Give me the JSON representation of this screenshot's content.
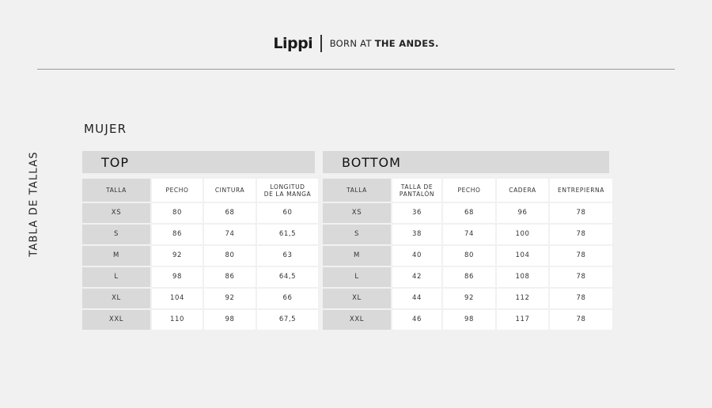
{
  "brand": {
    "logo": "Lippi",
    "tagline_prefix": "BORN AT ",
    "tagline_bold": "THE ANDES."
  },
  "side_title": "TABLA DE TALLAS",
  "section_title": "MUJER",
  "top": {
    "title": "TOP",
    "columns": [
      "TALLA",
      "PECHO",
      "CINTURA",
      "LONGITUD\nDE LA MANGA"
    ],
    "rows": [
      [
        "XS",
        "80",
        "68",
        "60"
      ],
      [
        "S",
        "86",
        "74",
        "61,5"
      ],
      [
        "M",
        "92",
        "80",
        "63"
      ],
      [
        "L",
        "98",
        "86",
        "64,5"
      ],
      [
        "XL",
        "104",
        "92",
        "66"
      ],
      [
        "XXL",
        "110",
        "98",
        "67,5"
      ]
    ]
  },
  "bottom": {
    "title": "BOTTOM",
    "columns": [
      "TALLA",
      "TALLA DE\nPANTALÓN",
      "PECHO",
      "CADERA",
      "ENTREPIERNA"
    ],
    "rows": [
      [
        "XS",
        "36",
        "68",
        "96",
        "78"
      ],
      [
        "S",
        "38",
        "74",
        "100",
        "78"
      ],
      [
        "M",
        "40",
        "80",
        "104",
        "78"
      ],
      [
        "L",
        "42",
        "86",
        "108",
        "78"
      ],
      [
        "XL",
        "44",
        "92",
        "112",
        "78"
      ],
      [
        "XXL",
        "46",
        "98",
        "117",
        "78"
      ]
    ]
  }
}
